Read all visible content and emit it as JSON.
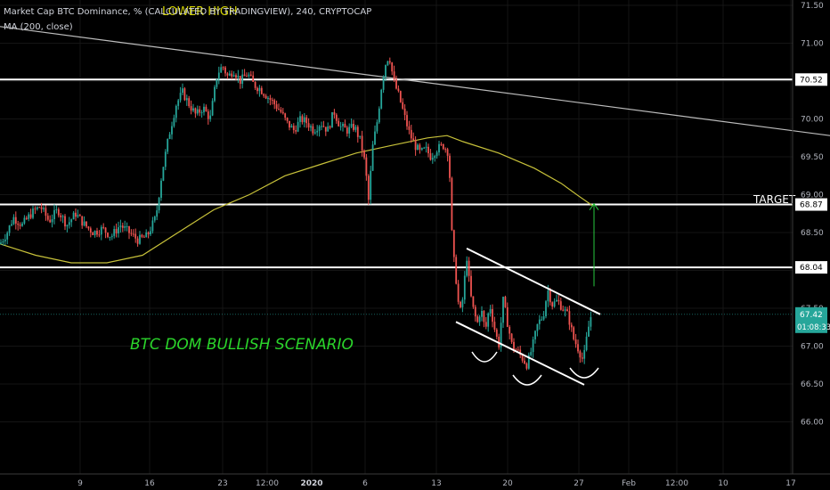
{
  "header": {
    "title": "Market Cap BTC Dominance, % (CALCULATED BY TRADINGVIEW), 240, CRYPTOCAP",
    "indicator": "MA (200, close)"
  },
  "colors": {
    "background": "#000000",
    "up": "#26a69a",
    "down": "#ef5350",
    "ma": "#c8c23a",
    "level": "#ffffff",
    "trend": "#bdbdbd",
    "projection": "#27c93f",
    "annotation": "#2bd62b",
    "lower_high": "#d4d400",
    "price_tag": "#26a69a"
  },
  "chart_data": {
    "type": "candlestick",
    "y_axis": {
      "min": 65.5,
      "max": 71.5,
      "ticks": [
        "71.50",
        "71.00",
        "70.50",
        "70.00",
        "69.50",
        "69.00",
        "68.50",
        "68.00",
        "67.50",
        "67.00",
        "66.50",
        "66.00"
      ]
    },
    "x_axis": {
      "ticks": [
        "9",
        "16",
        "23",
        "12:00",
        "2020",
        "6",
        "13",
        "20",
        "27",
        "Feb",
        "12:00",
        "10",
        "17"
      ]
    },
    "horizontal_levels": [
      {
        "value": 70.52,
        "label": "70.52"
      },
      {
        "value": 68.87,
        "label": "68.87"
      },
      {
        "value": 68.04,
        "label": "68.04"
      }
    ],
    "last_price": {
      "value": 67.42,
      "label": "67.42",
      "countdown": "01:08:33"
    },
    "annotations": {
      "lower_high": "LOWER HIGH",
      "target": "TARGET",
      "scenario": "BTC DOM BULLISH SCENARIO"
    },
    "price_path": [
      [
        0,
        68.35
      ],
      [
        8,
        68.5
      ],
      [
        15,
        68.7
      ],
      [
        25,
        68.6
      ],
      [
        35,
        68.75
      ],
      [
        45,
        68.85
      ],
      [
        55,
        68.65
      ],
      [
        65,
        68.8
      ],
      [
        75,
        68.6
      ],
      [
        85,
        68.75
      ],
      [
        95,
        68.6
      ],
      [
        105,
        68.5
      ],
      [
        115,
        68.55
      ],
      [
        125,
        68.45
      ],
      [
        135,
        68.6
      ],
      [
        145,
        68.5
      ],
      [
        155,
        68.4
      ],
      [
        165,
        68.45
      ],
      [
        175,
        68.7
      ],
      [
        182,
        69.3
      ],
      [
        190,
        69.8
      ],
      [
        198,
        70.2
      ],
      [
        205,
        70.35
      ],
      [
        212,
        70.2
      ],
      [
        220,
        70.05
      ],
      [
        228,
        70.15
      ],
      [
        236,
        70.0
      ],
      [
        244,
        70.6
      ],
      [
        250,
        70.7
      ],
      [
        256,
        70.55
      ],
      [
        262,
        70.65
      ],
      [
        270,
        70.5
      ],
      [
        278,
        70.6
      ],
      [
        285,
        70.45
      ],
      [
        292,
        70.4
      ],
      [
        300,
        70.3
      ],
      [
        308,
        70.2
      ],
      [
        315,
        70.1
      ],
      [
        322,
        69.95
      ],
      [
        330,
        69.85
      ],
      [
        338,
        70.0
      ],
      [
        345,
        69.95
      ],
      [
        352,
        69.85
      ],
      [
        360,
        69.95
      ],
      [
        368,
        69.85
      ],
      [
        375,
        70.1
      ],
      [
        382,
        69.9
      ],
      [
        390,
        69.85
      ],
      [
        398,
        69.9
      ],
      [
        405,
        69.7
      ],
      [
        410,
        69.4
      ],
      [
        414,
        68.9
      ],
      [
        418,
        69.6
      ],
      [
        424,
        70.0
      ],
      [
        428,
        70.4
      ],
      [
        432,
        70.7
      ],
      [
        437,
        70.85
      ],
      [
        442,
        70.5
      ],
      [
        448,
        70.3
      ],
      [
        455,
        70.0
      ],
      [
        460,
        69.8
      ],
      [
        466,
        69.65
      ],
      [
        472,
        69.55
      ],
      [
        478,
        69.6
      ],
      [
        484,
        69.5
      ],
      [
        490,
        69.6
      ],
      [
        498,
        69.65
      ],
      [
        504,
        69.55
      ],
      [
        508,
        68.3
      ],
      [
        512,
        67.9
      ],
      [
        516,
        67.4
      ],
      [
        520,
        67.65
      ],
      [
        524,
        68.2
      ],
      [
        528,
        67.7
      ],
      [
        532,
        67.45
      ],
      [
        536,
        67.3
      ],
      [
        540,
        67.5
      ],
      [
        545,
        67.2
      ],
      [
        550,
        67.55
      ],
      [
        555,
        67.25
      ],
      [
        560,
        67.0
      ],
      [
        565,
        67.6
      ],
      [
        570,
        67.3
      ],
      [
        575,
        67.0
      ],
      [
        580,
        66.95
      ],
      [
        586,
        66.85
      ],
      [
        592,
        66.75
      ],
      [
        598,
        67.0
      ],
      [
        604,
        67.3
      ],
      [
        610,
        67.4
      ],
      [
        615,
        67.75
      ],
      [
        620,
        67.55
      ],
      [
        626,
        67.6
      ],
      [
        632,
        67.5
      ],
      [
        638,
        67.4
      ],
      [
        644,
        67.1
      ],
      [
        650,
        66.95
      ],
      [
        655,
        66.8
      ],
      [
        660,
        67.2
      ],
      [
        664,
        67.42
      ]
    ],
    "moving_average": [
      [
        0,
        68.35
      ],
      [
        40,
        68.2
      ],
      [
        80,
        68.1
      ],
      [
        120,
        68.1
      ],
      [
        160,
        68.2
      ],
      [
        200,
        68.5
      ],
      [
        240,
        68.8
      ],
      [
        280,
        69.0
      ],
      [
        320,
        69.25
      ],
      [
        360,
        69.4
      ],
      [
        400,
        69.55
      ],
      [
        440,
        69.65
      ],
      [
        480,
        69.75
      ],
      [
        502,
        69.78
      ],
      [
        520,
        69.7
      ],
      [
        560,
        69.55
      ],
      [
        600,
        69.35
      ],
      [
        630,
        69.15
      ],
      [
        650,
        68.98
      ],
      [
        666,
        68.85
      ]
    ],
    "trend_line": {
      "from": [
        0,
        71.22
      ],
      "to": [
        932,
        69.78
      ]
    },
    "channel": {
      "upper": {
        "from": [
          524,
          68.29
        ],
        "to": [
          674,
          67.42
        ]
      },
      "lower": {
        "from": [
          512,
          67.32
        ],
        "to": [
          656,
          66.49
        ]
      }
    },
    "projection": {
      "x": 667,
      "from": 67.79,
      "to": 68.88
    }
  }
}
